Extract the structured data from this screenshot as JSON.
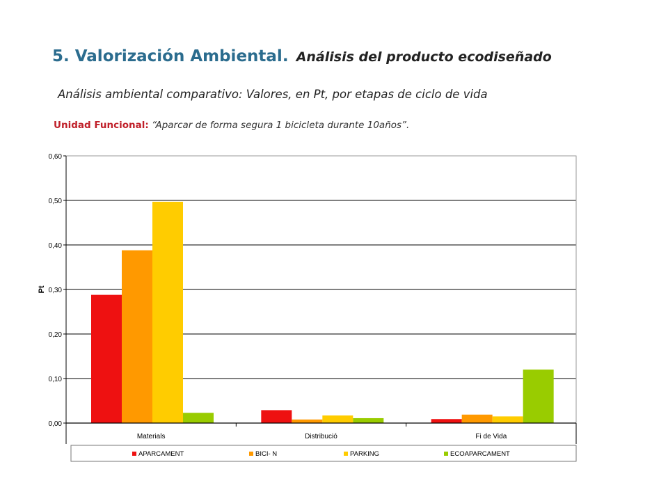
{
  "header": {
    "title_bold": "5. Valorización Ambiental.",
    "title_italic": "Análisis del producto ecodiseñado",
    "subtitle": "Análisis ambiental comparativo: Valores, en Pt, por etapas de ciclo de vida",
    "unit_label": "Unidad Funcional:",
    "unit_value": "“Aparcar de forma segura 1 bicicleta durante 10años”."
  },
  "chart_data": {
    "type": "bar",
    "title": "",
    "xlabel": "",
    "ylabel": "Pt",
    "ylim": [
      0,
      0.6
    ],
    "yticks": [
      {
        "value": 0,
        "label": "0,00"
      },
      {
        "value": 0.1,
        "label": "0,10"
      },
      {
        "value": 0.2,
        "label": "0,20"
      },
      {
        "value": 0.3,
        "label": "0,30"
      },
      {
        "value": 0.4,
        "label": "0,40"
      },
      {
        "value": 0.5,
        "label": "0,50"
      },
      {
        "value": 0.6,
        "label": "0,60"
      }
    ],
    "grid": true,
    "legend_position": "bottom",
    "categories": [
      "Materials",
      "Distribució",
      "Fi de Vida"
    ],
    "series": [
      {
        "name": "APARCAMENT",
        "color": "#ee1111",
        "values": [
          0.288,
          0.029,
          0.009
        ]
      },
      {
        "name": "BICI- N",
        "color": "#ff9900",
        "values": [
          0.388,
          0.008,
          0.019
        ]
      },
      {
        "name": "PARKING",
        "color": "#ffcc00",
        "values": [
          0.497,
          0.017,
          0.015
        ]
      },
      {
        "name": "ECOAPARCAMENT",
        "color": "#99cc00",
        "values": [
          0.023,
          0.011,
          0.12
        ]
      }
    ]
  }
}
